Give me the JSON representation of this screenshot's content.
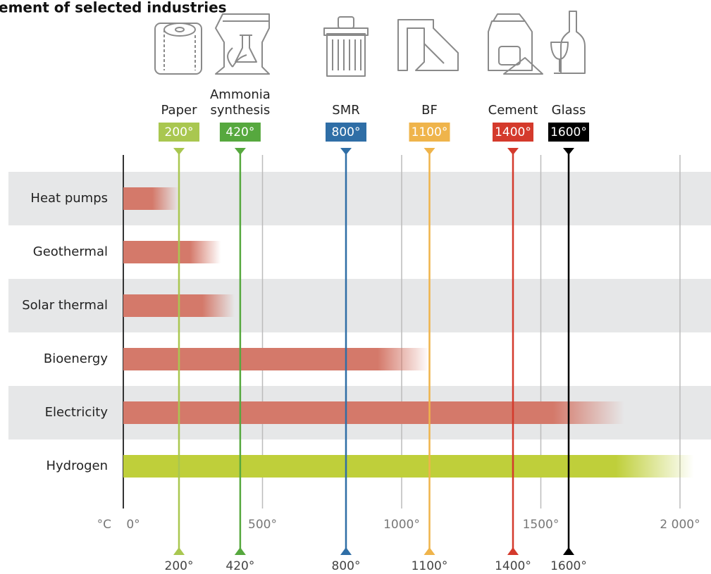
{
  "chart_data": {
    "type": "bar",
    "orientation": "horizontal",
    "title": "ement of selected industries",
    "x_label": "°C",
    "categories": [
      "Heat pumps",
      "Geothermal",
      "Solar thermal",
      "Bioenergy",
      "Electricity",
      "Hydrogen"
    ],
    "values": [
      200,
      350,
      400,
      1100,
      1800,
      2050
    ],
    "colors": [
      "#d4796a",
      "#d4796a",
      "#d4796a",
      "#d4796a",
      "#d4796a",
      "#bfcf3a"
    ],
    "xlim": [
      0,
      2100
    ],
    "xticks": [
      {
        "value": 0,
        "label": "0°"
      },
      {
        "value": 500,
        "label": "500°"
      },
      {
        "value": 1000,
        "label": "1000°"
      },
      {
        "value": 1500,
        "label": "1500°"
      },
      {
        "value": 2000,
        "label": "2 000°"
      }
    ],
    "grid": true,
    "industries": [
      {
        "name": "Paper",
        "value": 200,
        "label": "200°",
        "color": "#a9c750"
      },
      {
        "name": "Ammonia\nsynthesis",
        "value": 420,
        "label": "420°",
        "color": "#56a83e"
      },
      {
        "name": "SMR",
        "value": 800,
        "label": "800°",
        "color": "#2f6ea6"
      },
      {
        "name": "BF",
        "value": 1100,
        "label": "1100°",
        "color": "#efb44b"
      },
      {
        "name": "Cement",
        "value": 1400,
        "label": "1400°",
        "color": "#d43a2c"
      },
      {
        "name": "Glass",
        "value": 1600,
        "label": "1600°",
        "color": "#000000"
      }
    ]
  }
}
